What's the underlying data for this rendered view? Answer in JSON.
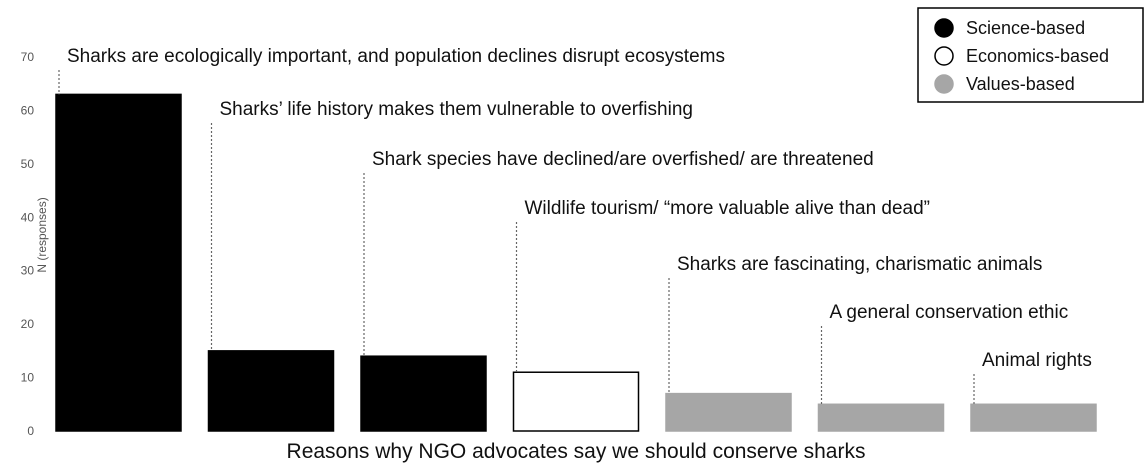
{
  "chart_data": {
    "type": "bar",
    "xlabel": "Reasons why NGO advocates say we should conserve sharks",
    "ylabel": "N (responses)",
    "ylim": [
      0,
      70
    ],
    "yticks": [
      0,
      10,
      20,
      30,
      40,
      50,
      60,
      70
    ],
    "grid": false,
    "legend_position": "top-right",
    "legend": [
      {
        "name": "Science-based",
        "fill": "#000000",
        "stroke": "#000000"
      },
      {
        "name": "Economics-based",
        "fill": "#ffffff",
        "stroke": "#000000"
      },
      {
        "name": "Values-based",
        "fill": "#a6a6a6",
        "stroke": "#a6a6a6"
      }
    ],
    "categories": [
      "Sharks are ecologically important, and population declines disrupt ecosystems",
      "Sharks’ life history makes them vulnerable to overfishing",
      "Shark species have declined/are overfished/ are threatened",
      "Wildlife tourism/ “more valuable alive than dead”",
      "Sharks are fascinating, charismatic animals",
      "A general conservation ethic",
      "Animal rights"
    ],
    "values": [
      63,
      15,
      14,
      11,
      7,
      5,
      5
    ],
    "groups": [
      "Science-based",
      "Science-based",
      "Science-based",
      "Economics-based",
      "Values-based",
      "Values-based",
      "Values-based"
    ]
  }
}
